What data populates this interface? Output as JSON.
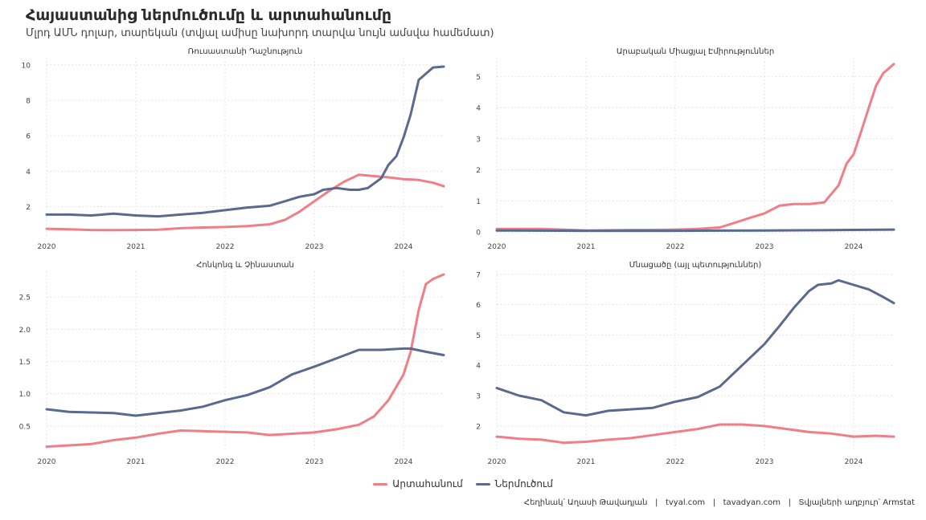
{
  "title": "Հայաստանից ներմուծումը և արտահանումը",
  "subtitle": "Մլրդ ԱՄՆ դոլար, տարեկան (տվյալ ամիսը նախորդ տարվա նույն ամսվա համեմատ)",
  "legend": {
    "export": "Արտահանում",
    "import": "Ներմուծում"
  },
  "colors": {
    "export": "#f07e86",
    "import": "#5a6a8e",
    "grid": "#d5d5d5"
  },
  "caption": {
    "author": "Հեղինակ՝ Աղասի Թավադյան",
    "site1": "tvyal.com",
    "site2": "tavadyan.com",
    "source": "Տվյալների աղբյուր՝ Armstat",
    "sep": "|"
  },
  "chart_data": [
    {
      "type": "line",
      "title": "Ռուսաստանի Դաշնություն",
      "xlim": [
        2020,
        2024.45
      ],
      "ylim": [
        0.3,
        10.4
      ],
      "xticks": [
        "2020",
        "2021",
        "2022",
        "2023",
        "2024"
      ],
      "yticks": [
        "2",
        "4",
        "6",
        "8",
        "10"
      ],
      "series": [
        {
          "name": "Արտահանում",
          "x": [
            2020,
            2020.25,
            2020.5,
            2020.75,
            2021,
            2021.25,
            2021.5,
            2021.75,
            2022,
            2022.25,
            2022.5,
            2022.67,
            2022.83,
            2023,
            2023.17,
            2023.33,
            2023.5,
            2023.67,
            2023.83,
            2024,
            2024.17,
            2024.33,
            2024.45
          ],
          "values": [
            0.75,
            0.72,
            0.68,
            0.67,
            0.68,
            0.7,
            0.78,
            0.82,
            0.85,
            0.9,
            1.0,
            1.25,
            1.7,
            2.3,
            2.9,
            3.4,
            3.8,
            3.72,
            3.65,
            3.55,
            3.5,
            3.35,
            3.15
          ]
        },
        {
          "name": "Ներմուծում",
          "x": [
            2020,
            2020.25,
            2020.5,
            2020.75,
            2021,
            2021.25,
            2021.5,
            2021.75,
            2022,
            2022.25,
            2022.5,
            2022.67,
            2022.83,
            2023,
            2023.1,
            2023.25,
            2023.4,
            2023.5,
            2023.6,
            2023.75,
            2023.83,
            2023.92,
            2024,
            2024.08,
            2024.17,
            2024.25,
            2024.33,
            2024.45
          ],
          "values": [
            1.55,
            1.55,
            1.5,
            1.6,
            1.5,
            1.45,
            1.55,
            1.65,
            1.8,
            1.95,
            2.05,
            2.3,
            2.55,
            2.7,
            2.95,
            3.05,
            2.95,
            2.95,
            3.05,
            3.6,
            4.35,
            4.85,
            5.9,
            7.2,
            9.15,
            9.5,
            9.85,
            9.9
          ]
        }
      ]
    },
    {
      "type": "line",
      "title": "Արաբական Միացյալ Էմիրություններ",
      "xlim": [
        2020,
        2024.45
      ],
      "ylim": [
        -0.15,
        5.6
      ],
      "xticks": [
        "2020",
        "2021",
        "2022",
        "2023",
        "2024"
      ],
      "yticks": [
        "0",
        "1",
        "2",
        "3",
        "4",
        "5"
      ],
      "series": [
        {
          "name": "Արտահանում",
          "x": [
            2020,
            2020.25,
            2020.5,
            2020.75,
            2021,
            2021.25,
            2021.5,
            2021.75,
            2022,
            2022.25,
            2022.5,
            2022.67,
            2022.83,
            2023,
            2023.17,
            2023.33,
            2023.5,
            2023.67,
            2023.83,
            2023.92,
            2024,
            2024.08,
            2024.17,
            2024.25,
            2024.33,
            2024.45
          ],
          "values": [
            0.1,
            0.1,
            0.1,
            0.08,
            0.05,
            0.06,
            0.07,
            0.07,
            0.08,
            0.1,
            0.15,
            0.3,
            0.45,
            0.6,
            0.85,
            0.9,
            0.9,
            0.95,
            1.5,
            2.2,
            2.5,
            3.2,
            4.0,
            4.7,
            5.1,
            5.4
          ]
        },
        {
          "name": "Ներմուծում",
          "x": [
            2020,
            2021,
            2022,
            2023,
            2023.5,
            2024,
            2024.45
          ],
          "values": [
            0.05,
            0.04,
            0.04,
            0.05,
            0.06,
            0.07,
            0.08
          ]
        }
      ]
    },
    {
      "type": "line",
      "title": "Հոնկոնգ և Չինաստան",
      "xlim": [
        2020,
        2024.45
      ],
      "ylim": [
        0.1,
        2.9
      ],
      "xticks": [
        "2020",
        "2021",
        "2022",
        "2023",
        "2024"
      ],
      "yticks": [
        "0.5",
        "1.0",
        "1.5",
        "2.0",
        "2.5"
      ],
      "series": [
        {
          "name": "Արտահանում",
          "x": [
            2020,
            2020.25,
            2020.5,
            2020.75,
            2021,
            2021.25,
            2021.5,
            2021.75,
            2022,
            2022.25,
            2022.5,
            2022.75,
            2023,
            2023.25,
            2023.5,
            2023.67,
            2023.83,
            2024,
            2024.08,
            2024.17,
            2024.25,
            2024.33,
            2024.45
          ],
          "values": [
            0.18,
            0.2,
            0.22,
            0.28,
            0.32,
            0.38,
            0.43,
            0.42,
            0.41,
            0.4,
            0.36,
            0.38,
            0.4,
            0.45,
            0.52,
            0.65,
            0.9,
            1.3,
            1.65,
            2.3,
            2.7,
            2.78,
            2.85
          ]
        },
        {
          "name": "Ներմուծում",
          "x": [
            2020,
            2020.25,
            2020.5,
            2020.75,
            2021,
            2021.25,
            2021.5,
            2021.75,
            2022,
            2022.25,
            2022.5,
            2022.75,
            2023,
            2023.25,
            2023.5,
            2023.75,
            2024,
            2024.08,
            2024.25,
            2024.45
          ],
          "values": [
            0.76,
            0.72,
            0.71,
            0.7,
            0.66,
            0.7,
            0.74,
            0.8,
            0.9,
            0.98,
            1.1,
            1.3,
            1.42,
            1.55,
            1.68,
            1.68,
            1.7,
            1.7,
            1.65,
            1.6
          ]
        }
      ]
    },
    {
      "type": "line",
      "title": "Մնացածը (այլ պետություններ)",
      "xlim": [
        2020,
        2024.45
      ],
      "ylim": [
        1.15,
        7.1
      ],
      "xticks": [
        "2020",
        "2021",
        "2022",
        "2023",
        "2024"
      ],
      "yticks": [
        "2",
        "3",
        "4",
        "5",
        "6",
        "7"
      ],
      "series": [
        {
          "name": "Արտահանում",
          "x": [
            2020,
            2020.25,
            2020.5,
            2020.75,
            2021,
            2021.25,
            2021.5,
            2021.75,
            2022,
            2022.25,
            2022.5,
            2022.75,
            2023,
            2023.25,
            2023.5,
            2023.75,
            2024,
            2024.25,
            2024.45
          ],
          "values": [
            1.65,
            1.58,
            1.55,
            1.45,
            1.48,
            1.55,
            1.6,
            1.7,
            1.8,
            1.9,
            2.05,
            2.05,
            2.0,
            1.9,
            1.8,
            1.75,
            1.65,
            1.68,
            1.65
          ]
        },
        {
          "name": "Ներմուծում",
          "x": [
            2020,
            2020.25,
            2020.5,
            2020.75,
            2021,
            2021.25,
            2021.5,
            2021.75,
            2022,
            2022.25,
            2022.5,
            2022.75,
            2023,
            2023.17,
            2023.33,
            2023.5,
            2023.6,
            2023.75,
            2023.83,
            2024,
            2024.17,
            2024.33,
            2024.45
          ],
          "values": [
            3.25,
            3.0,
            2.85,
            2.45,
            2.35,
            2.5,
            2.55,
            2.6,
            2.8,
            2.95,
            3.3,
            4.0,
            4.7,
            5.3,
            5.9,
            6.45,
            6.65,
            6.7,
            6.8,
            6.65,
            6.5,
            6.25,
            6.05
          ]
        }
      ]
    }
  ]
}
